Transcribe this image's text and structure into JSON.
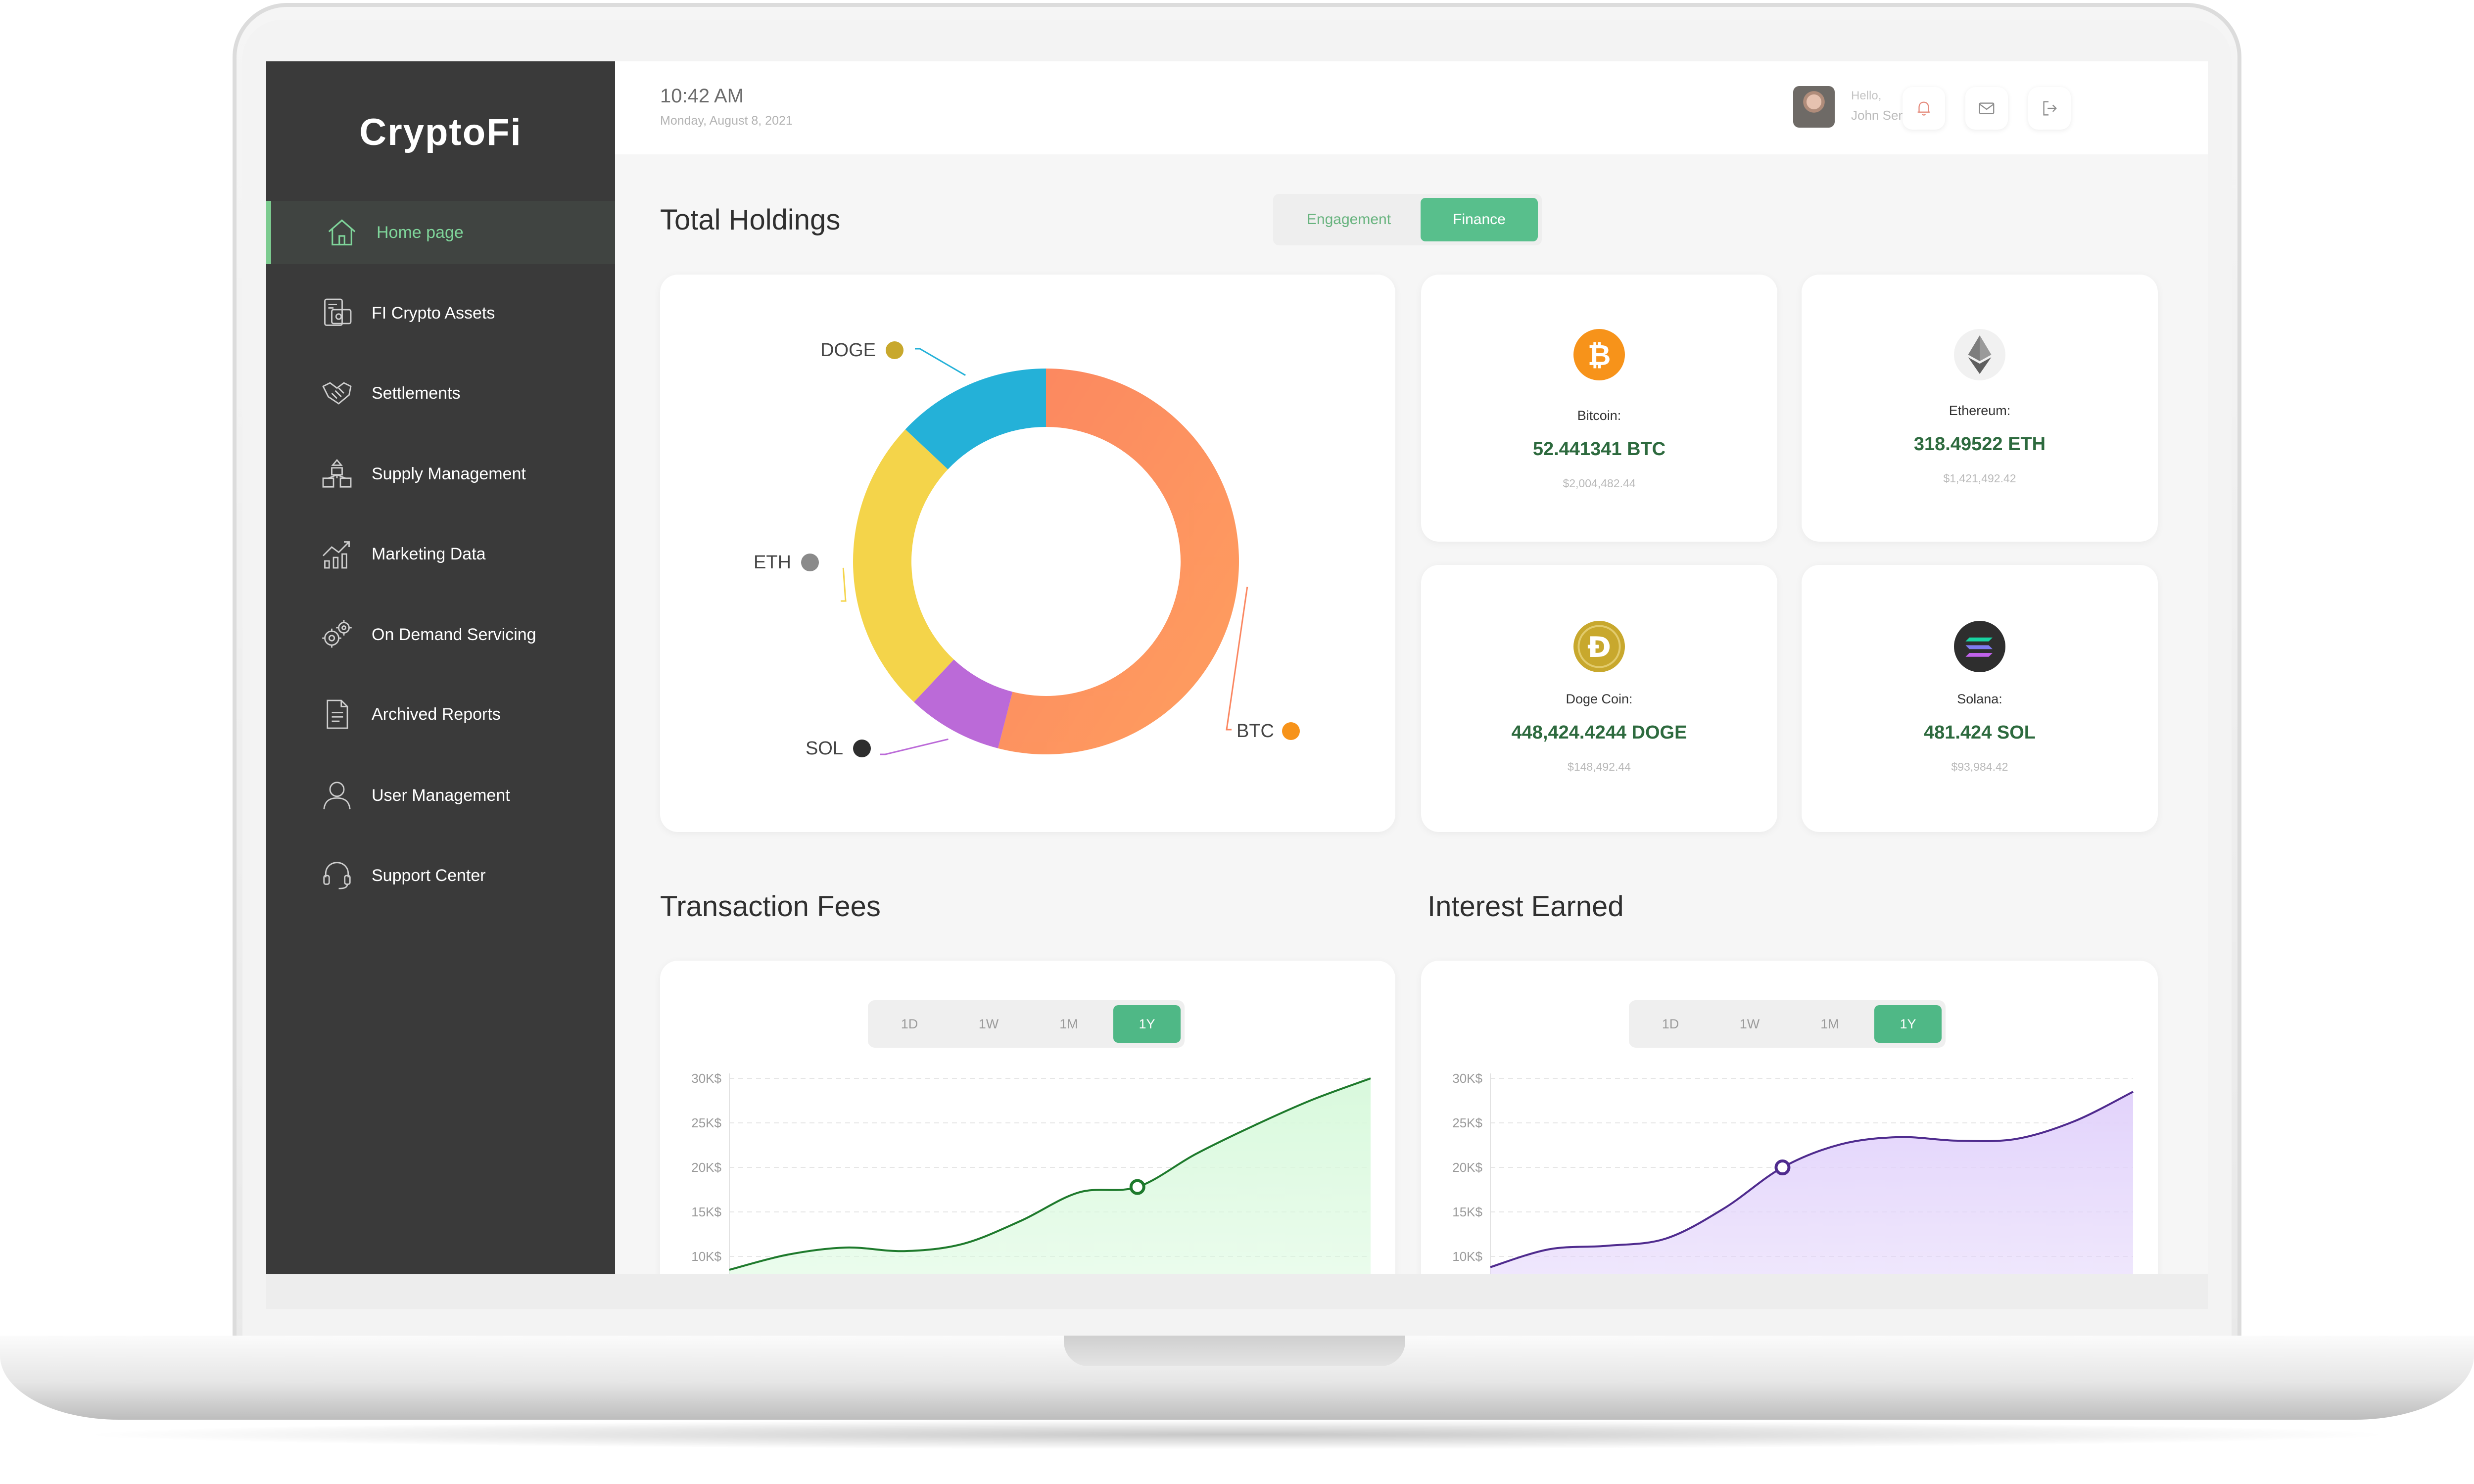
{
  "brand": "CryptoFi",
  "sidebar": {
    "items": [
      {
        "label": "Home page",
        "icon": "home-icon",
        "active": true
      },
      {
        "label": "FI Crypto Assets",
        "icon": "wallet-icon",
        "active": false
      },
      {
        "label": "Settlements",
        "icon": "handshake-icon",
        "active": false
      },
      {
        "label": "Supply Management",
        "icon": "boxes-icon",
        "active": false
      },
      {
        "label": "Marketing Data",
        "icon": "chart-growth-icon",
        "active": false
      },
      {
        "label": "On Demand Servicing",
        "icon": "gears-icon",
        "active": false
      },
      {
        "label": "Archived Reports",
        "icon": "document-icon",
        "active": false
      },
      {
        "label": "User Management",
        "icon": "user-icon",
        "active": false
      },
      {
        "label": "Support Center",
        "icon": "headset-icon",
        "active": false
      }
    ]
  },
  "header": {
    "time": "10:42 AM",
    "date": "Monday, August 8, 2021",
    "greeting": "Hello,",
    "username": "John Sena",
    "icons": [
      "bell-icon",
      "mail-icon",
      "logout-icon"
    ]
  },
  "holdings": {
    "title": "Total Holdings",
    "toggle": {
      "options": [
        "Engagement",
        "Finance"
      ],
      "selected": "Finance"
    },
    "coins": [
      {
        "name": "Bitcoin:",
        "amount": "52.441341 BTC",
        "usd": "$2,004,482.44",
        "icon": "bitcoin-icon",
        "color": "#f7931a"
      },
      {
        "name": "Ethereum:",
        "amount": "318.49522 ETH",
        "usd": "$1,421,492.42",
        "icon": "ethereum-icon",
        "color": "#8a8a8a"
      },
      {
        "name": "Doge Coin:",
        "amount": "448,424.4244 DOGE",
        "usd": "$148,492.44",
        "icon": "dogecoin-icon",
        "color": "#c8a82d"
      },
      {
        "name": "Solana:",
        "amount": "481.424 SOL",
        "usd": "$93,984.42",
        "icon": "solana-icon",
        "color": "#2e2e2e"
      }
    ]
  },
  "chart_data": [
    {
      "type": "pie",
      "title": "",
      "labels": [
        "BTC",
        "SOL",
        "ETH",
        "DOGE"
      ],
      "values": [
        54,
        8,
        25,
        13
      ],
      "colors": [
        "#fb8660",
        "#bb6ad8",
        "#f4d44a",
        "#24b1d8"
      ]
    },
    {
      "type": "area",
      "title": "Transaction Fees",
      "ranges": [
        "1D",
        "1W",
        "1M",
        "1Y"
      ],
      "selected_range": "1Y",
      "yticks": [
        "30K$",
        "25K$",
        "20K$",
        "15K$",
        "10K$"
      ],
      "ylim": [
        10000,
        30000
      ],
      "x": [
        0,
        1,
        2,
        3,
        4,
        5,
        6,
        7,
        8,
        9,
        10,
        11
      ],
      "values": [
        8500,
        10200,
        11000,
        10600,
        11400,
        14000,
        17200,
        17800,
        21500,
        24700,
        27600,
        30000
      ],
      "highlight_index": 7,
      "color": "#1e7a2c",
      "fill": "#d9f9dd"
    },
    {
      "type": "area",
      "title": "Interest Earned",
      "ranges": [
        "1D",
        "1W",
        "1M",
        "1Y"
      ],
      "selected_range": "1Y",
      "yticks": [
        "30K$",
        "25K$",
        "20K$",
        "15K$",
        "10K$"
      ],
      "ylim": [
        10000,
        30000
      ],
      "x": [
        0,
        1,
        2,
        3,
        4,
        5,
        6,
        7,
        8,
        9,
        10,
        11
      ],
      "values": [
        8800,
        10800,
        11200,
        12000,
        15400,
        20000,
        22600,
        23400,
        23000,
        23200,
        25200,
        28500
      ],
      "highlight_index": 5,
      "color": "#4f2b8e",
      "fill": "#e2d3fb"
    }
  ]
}
